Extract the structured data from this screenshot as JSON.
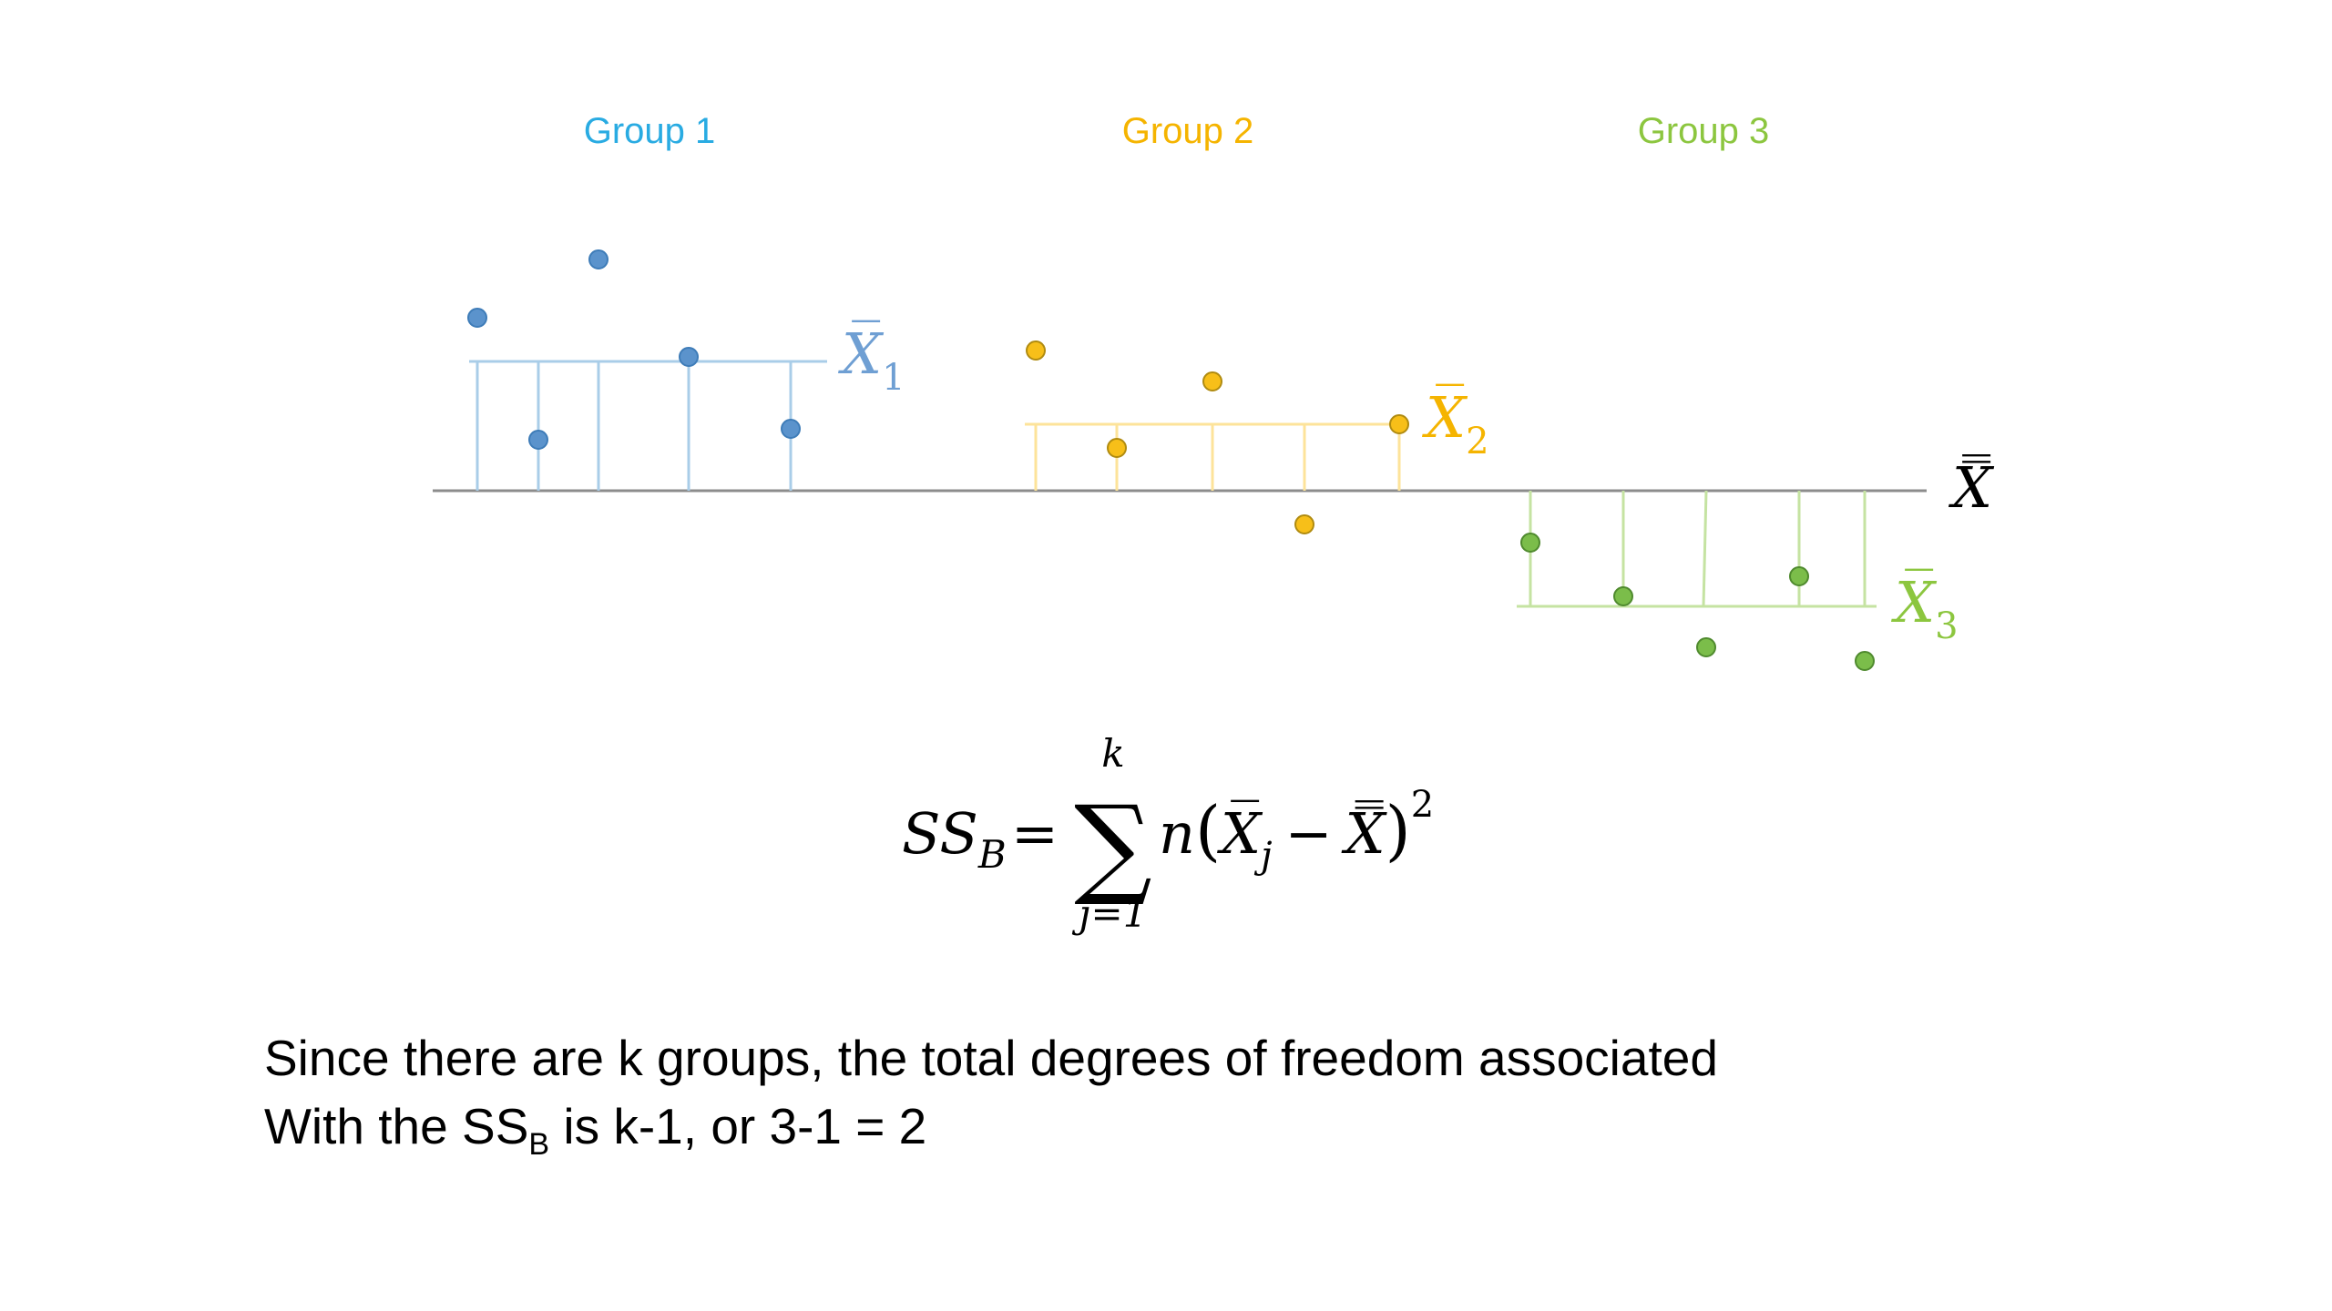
{
  "groups": [
    {
      "label": "Group 1",
      "mean_label": "X̅",
      "mean_sub": "1",
      "color": "#29abe2",
      "line_color": "#a9cde8",
      "point_color": "#5b93cc",
      "point_stroke": "#3e7cb8"
    },
    {
      "label": "Group 2",
      "mean_label": "X̅",
      "mean_sub": "2",
      "color": "#f5b400",
      "line_color": "#fde39a",
      "point_color": "#f7bf19",
      "point_stroke": "#b08b10"
    },
    {
      "label": "Group 3",
      "mean_label": "X̅",
      "mean_sub": "3",
      "color": "#8cc63f",
      "line_color": "#c5e3a2",
      "point_color": "#7bbd4a",
      "point_stroke": "#4f8a2e"
    }
  ],
  "grand_mean_label": "X̿",
  "formula": {
    "lhs": "SS",
    "lhs_sub": "B",
    "equals": "=",
    "sum_symbol": "∑",
    "sum_upper": "k",
    "sum_lower": "j=1",
    "body_n": "n",
    "open_paren": "(",
    "xbar": "X̅",
    "xbar_sub": "j",
    "minus": "−",
    "xbarbar": "X̿",
    "close_paren": ")",
    "exponent": "2"
  },
  "caption": {
    "line1": "Since there are k groups, the total degrees of freedom associated",
    "line2_before": "With the SS",
    "line2_sub": "B",
    "line2_after": " is k-1, or 3-1 = 2"
  }
}
